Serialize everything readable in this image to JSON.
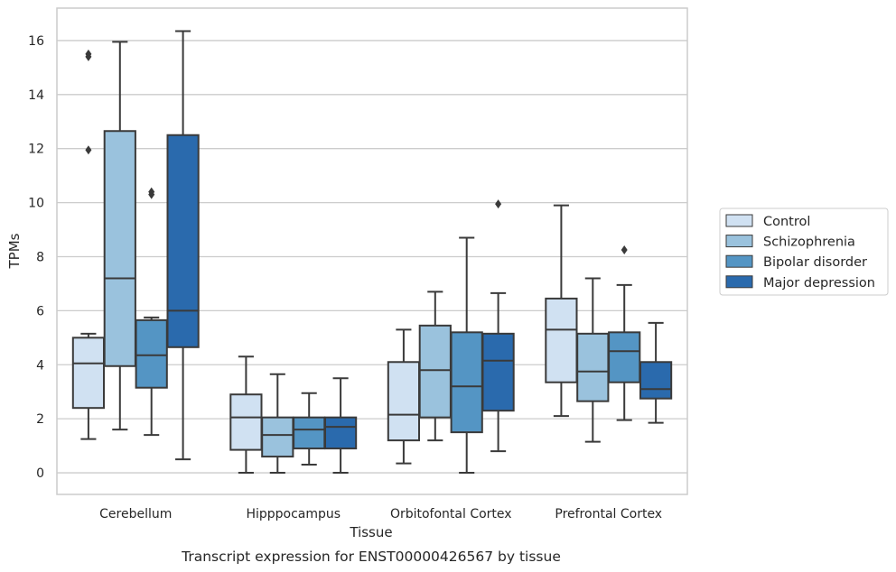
{
  "chart_data": {
    "type": "boxplot",
    "caption": "Transcript expression for ENST00000426567 by tissue",
    "xlabel": "Tissue",
    "ylabel": "TPMs",
    "ylim": [
      -0.8,
      17.2
    ],
    "yticks": [
      0,
      2,
      4,
      6,
      8,
      10,
      12,
      14,
      16
    ],
    "grid": true,
    "legend_position": "right",
    "categories": [
      "Cerebellum",
      "Hipppocampus",
      "Orbitofontal Cortex",
      "Prefrontal Cortex"
    ],
    "series": [
      {
        "name": "Control",
        "color": "#d0e1f2",
        "boxes": [
          {
            "whislo": 1.25,
            "q1": 2.4,
            "med": 4.05,
            "q3": 5.0,
            "whishi": 5.15,
            "fliers": [
              11.95,
              15.4,
              15.5
            ]
          },
          {
            "whislo": 0.0,
            "q1": 0.85,
            "med": 2.05,
            "q3": 2.9,
            "whishi": 4.3,
            "fliers": []
          },
          {
            "whislo": 0.35,
            "q1": 1.2,
            "med": 2.15,
            "q3": 4.1,
            "whishi": 5.3,
            "fliers": []
          },
          {
            "whislo": 2.1,
            "q1": 3.35,
            "med": 5.3,
            "q3": 6.45,
            "whishi": 9.9,
            "fliers": []
          }
        ]
      },
      {
        "name": "Schizophrenia",
        "color": "#9ac2dd",
        "boxes": [
          {
            "whislo": 1.6,
            "q1": 3.95,
            "med": 7.2,
            "q3": 12.65,
            "whishi": 15.95,
            "fliers": []
          },
          {
            "whislo": 0.0,
            "q1": 0.6,
            "med": 1.4,
            "q3": 2.05,
            "whishi": 3.65,
            "fliers": []
          },
          {
            "whislo": 1.2,
            "q1": 2.05,
            "med": 3.8,
            "q3": 5.45,
            "whishi": 6.7,
            "fliers": []
          },
          {
            "whislo": 1.15,
            "q1": 2.65,
            "med": 3.75,
            "q3": 5.15,
            "whishi": 7.2,
            "fliers": []
          }
        ]
      },
      {
        "name": "Bipolar disorder",
        "color": "#5495c4",
        "boxes": [
          {
            "whislo": 1.4,
            "q1": 3.15,
            "med": 4.35,
            "q3": 5.65,
            "whishi": 5.75,
            "fliers": [
              10.3,
              10.4
            ]
          },
          {
            "whislo": 0.3,
            "q1": 0.9,
            "med": 1.6,
            "q3": 2.05,
            "whishi": 2.95,
            "fliers": []
          },
          {
            "whislo": 0.0,
            "q1": 1.5,
            "med": 3.2,
            "q3": 5.2,
            "whishi": 8.7,
            "fliers": []
          },
          {
            "whislo": 1.95,
            "q1": 3.35,
            "med": 4.5,
            "q3": 5.2,
            "whishi": 6.95,
            "fliers": [
              8.25
            ]
          }
        ]
      },
      {
        "name": "Major depression",
        "color": "#2a6aad",
        "boxes": [
          {
            "whislo": 0.5,
            "q1": 4.65,
            "med": 6.0,
            "q3": 12.5,
            "whishi": 16.35,
            "fliers": []
          },
          {
            "whislo": 0.0,
            "q1": 0.9,
            "med": 1.7,
            "q3": 2.05,
            "whishi": 3.5,
            "fliers": []
          },
          {
            "whislo": 0.8,
            "q1": 2.3,
            "med": 4.15,
            "q3": 5.15,
            "whishi": 6.65,
            "fliers": [
              9.95
            ]
          },
          {
            "whislo": 1.85,
            "q1": 2.75,
            "med": 3.1,
            "q3": 4.1,
            "whishi": 5.55,
            "fliers": []
          }
        ]
      }
    ]
  }
}
